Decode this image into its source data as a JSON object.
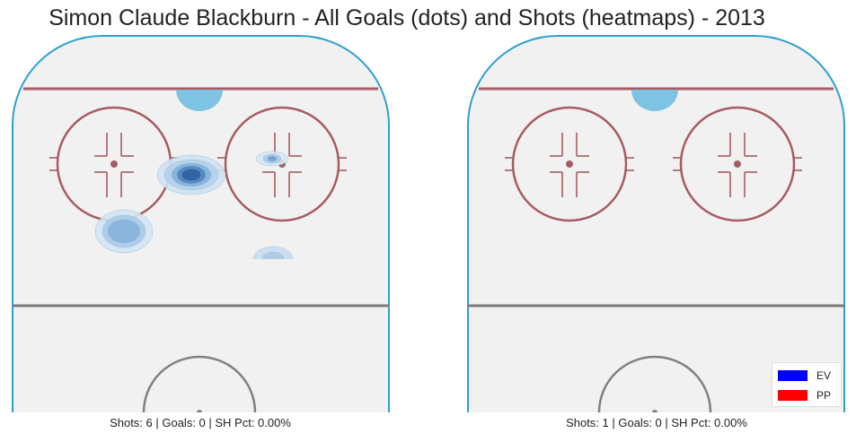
{
  "title": "Simon Claude Blackburn - All Goals (dots) and Shots (heatmaps) - 2013",
  "chart_data": [
    {
      "type": "heatmap",
      "panel": "left",
      "caption": "Shots: 6 | Goals: 0 | SH Pct: 0.00%",
      "shots": 6,
      "goals": 0,
      "sh_pct": "0.00%",
      "goal_dots": [],
      "shot_density_regions": [
        {
          "zone": "between faceoff circles, high slot",
          "intensity": "high",
          "color": "#2f5f9e"
        },
        {
          "zone": "left boards below left circle",
          "intensity": "medium",
          "color": "#6fa3d0"
        },
        {
          "zone": "inside right faceoff circle, top",
          "intensity": "low",
          "color": "#9cc3e4"
        },
        {
          "zone": "below right faceoff circle",
          "intensity": "low",
          "color": "#b7d4ec"
        }
      ]
    },
    {
      "type": "heatmap",
      "panel": "right",
      "caption": "Shots: 1 | Goals: 0 | SH Pct: 0.00%",
      "shots": 1,
      "goals": 0,
      "sh_pct": "0.00%",
      "goal_dots": [],
      "shot_density_regions": []
    }
  ],
  "legend": {
    "placement": "lower-right",
    "items": [
      {
        "label": "EV",
        "color": "#0000ff"
      },
      {
        "label": "PP",
        "color": "#ff0000"
      }
    ]
  },
  "colors": {
    "ice": "#f1f1f1",
    "boards": "#2e9fd0",
    "red_line": "#a55c62",
    "center_line": "#7a7a7a",
    "crease": "#7ec3e2"
  }
}
